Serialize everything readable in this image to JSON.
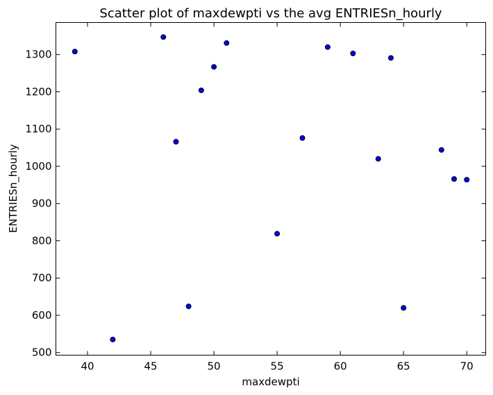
{
  "chart_data": {
    "type": "scatter",
    "title": "Scatter plot of maxdewpti vs the avg ENTRIESn_hourly",
    "xlabel": "maxdewpti",
    "ylabel": "ENTRIESn_hourly",
    "xlim": [
      37.5,
      71.5
    ],
    "ylim": [
      493,
      1386
    ],
    "xticks": [
      40,
      45,
      50,
      55,
      60,
      65,
      70
    ],
    "yticks": [
      500,
      600,
      700,
      800,
      900,
      1000,
      1100,
      1200,
      1300
    ],
    "grid": false,
    "marker_color": "#0000ff",
    "series": [
      {
        "points": [
          {
            "x": 39,
            "y": 1308
          },
          {
            "x": 42,
            "y": 535
          },
          {
            "x": 46,
            "y": 1347
          },
          {
            "x": 47,
            "y": 1066
          },
          {
            "x": 48,
            "y": 624
          },
          {
            "x": 49,
            "y": 1204
          },
          {
            "x": 50,
            "y": 1267
          },
          {
            "x": 51,
            "y": 1331
          },
          {
            "x": 55,
            "y": 819
          },
          {
            "x": 57,
            "y": 1076
          },
          {
            "x": 59,
            "y": 1320
          },
          {
            "x": 61,
            "y": 1303
          },
          {
            "x": 63,
            "y": 1020
          },
          {
            "x": 64,
            "y": 1291
          },
          {
            "x": 65,
            "y": 620
          },
          {
            "x": 68,
            "y": 1044
          },
          {
            "x": 69,
            "y": 966
          },
          {
            "x": 70,
            "y": 964
          }
        ]
      }
    ]
  }
}
